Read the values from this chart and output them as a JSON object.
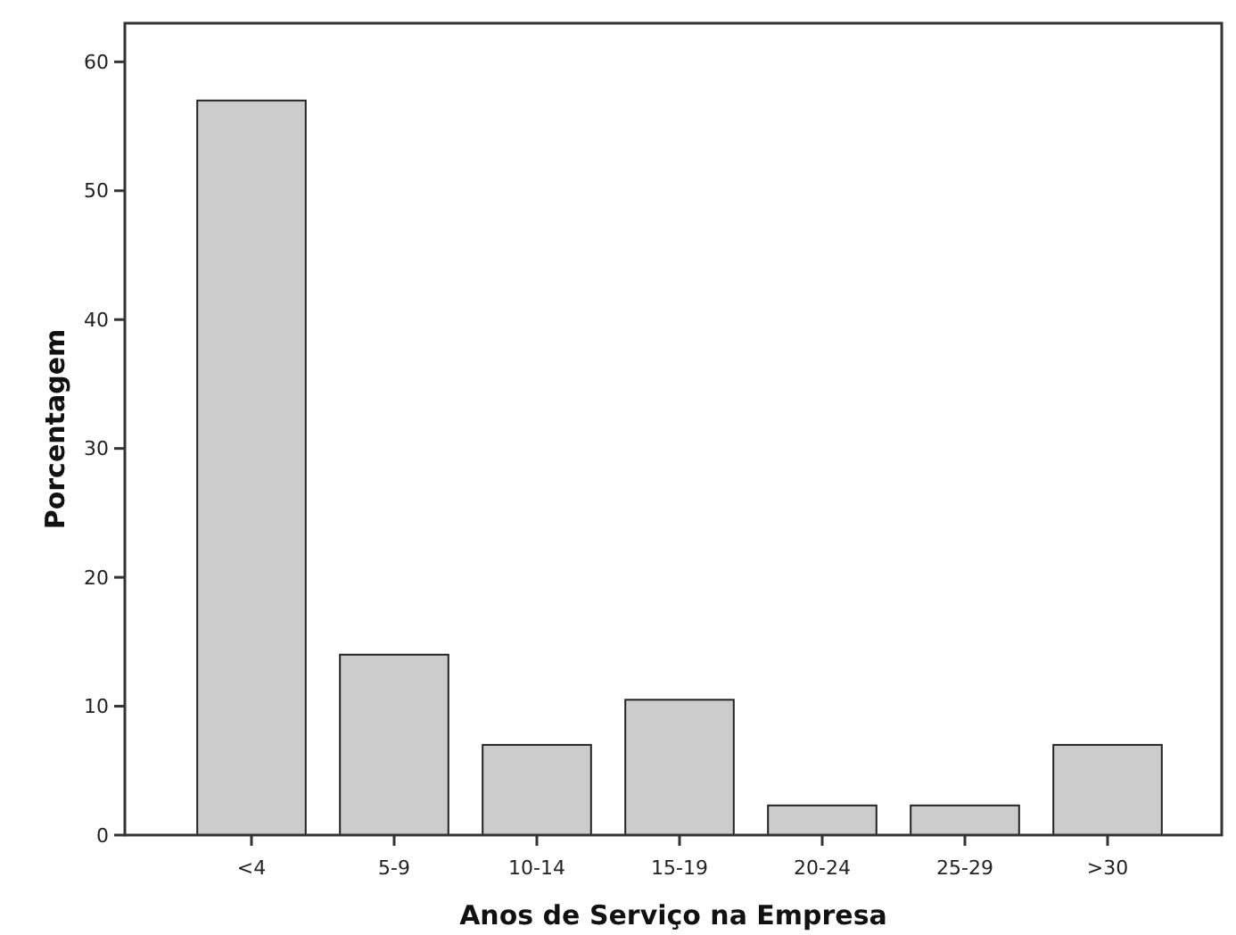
{
  "chart_data": {
    "type": "bar",
    "xlabel": "Anos de Serviço na Empresa",
    "ylabel": "Porcentagem",
    "categories": [
      "<4",
      "5-9",
      "10-14",
      "15-19",
      "20-24",
      "25-29",
      ">30"
    ],
    "values": [
      57,
      14,
      7,
      10.5,
      2.3,
      2.3,
      7
    ],
    "color": "#cccccc",
    "ylim": [
      0,
      63
    ],
    "yticks": [
      0,
      10,
      20,
      30,
      40,
      50,
      60
    ],
    "grid": false
  }
}
